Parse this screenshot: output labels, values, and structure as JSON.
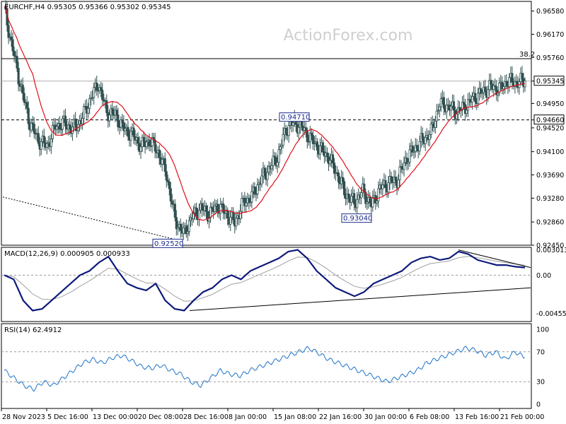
{
  "header": {
    "title": "EURCHF,H4  0.95305 0.95366 0.95302 0.95345"
  },
  "watermark": "ActionForex.com",
  "colors": {
    "candle": "#2f4f4f",
    "ma": "#e0101a",
    "macd": "#0c1a7a",
    "signal": "#a0a0a0",
    "rsi": "#1e74c8",
    "boxed_label": "#1a2a8a",
    "grid": "#9a9a9a",
    "price_tag_bg": "#ffffff"
  },
  "chart_data": [
    {
      "type": "candlestick",
      "title": "EURCHF,H4  0.95305 0.95366 0.95302 0.95345",
      "ylim": [
        0.9245,
        0.9675
      ],
      "y_ticks": [
        "0.96580",
        "0.96170",
        "0.95760",
        "0.95345",
        "0.94950",
        "0.94660",
        "0.94520",
        "0.94100",
        "0.93690",
        "0.93280",
        "0.92860",
        "0.92450"
      ],
      "x_ticks": [
        "28 Nov 2023",
        "5 Dec 16:00",
        "13 Dec 00:00",
        "20 Dec 08:00",
        "28 Dec 16:00",
        "8 Jan 00:00",
        "15 Jan 08:00",
        "22 Jan 16:00",
        "30 Jan 00:00",
        "6 Feb 08:00",
        "13 Feb 16:00",
        "21 Feb 00:00"
      ],
      "current_price": "0.95345",
      "levels": [
        {
          "value": 0.9574,
          "label": "38.2",
          "style": "solid"
        },
        {
          "value": 0.9466,
          "label": "0.94660",
          "style": "dashed"
        }
      ],
      "annotations": [
        {
          "text": "0.94710",
          "x": "15 Jan 2024",
          "y": 0.9471
        },
        {
          "text": "0.93040",
          "x": "30 Jan 2024",
          "y": 0.9304
        },
        {
          "text": "0.92520",
          "x": "28 Dec 2023",
          "y": 0.9252
        }
      ],
      "trendline": {
        "from": {
          "x": "28 Nov 2023",
          "y": 0.933
        },
        "to": {
          "x": "28 Dec 2023",
          "y": 0.9252
        },
        "style": "dotted"
      },
      "close_path": [
        [
          "28 Nov",
          0.966
        ],
        [
          "29 Nov",
          0.959
        ],
        [
          "30 Nov",
          0.952
        ],
        [
          "1 Dec",
          0.946
        ],
        [
          "4 Dec",
          0.943
        ],
        [
          "5 Dec",
          0.942
        ],
        [
          "6 Dec",
          0.9455
        ],
        [
          "7 Dec",
          0.946
        ],
        [
          "8 Dec",
          0.945
        ],
        [
          "11 Dec",
          0.9465
        ],
        [
          "12 Dec",
          0.95
        ],
        [
          "13 Dec",
          0.953
        ],
        [
          "14 Dec",
          0.948
        ],
        [
          "15 Dec",
          0.9475
        ],
        [
          "18 Dec",
          0.945
        ],
        [
          "19 Dec",
          0.944
        ],
        [
          "20 Dec",
          0.942
        ],
        [
          "21 Dec",
          0.943
        ],
        [
          "22 Dec",
          0.941
        ],
        [
          "26 Dec",
          0.937
        ],
        [
          "27 Dec",
          0.929
        ],
        [
          "28 Dec",
          0.9265
        ],
        [
          "29 Dec",
          0.9295
        ],
        [
          "2 Jan",
          0.931
        ],
        [
          "3 Jan",
          0.93
        ],
        [
          "4 Jan",
          0.9315
        ],
        [
          "5 Jan",
          0.93
        ],
        [
          "8 Jan",
          0.9285
        ],
        [
          "9 Jan",
          0.932
        ],
        [
          "10 Jan",
          0.933
        ],
        [
          "11 Jan",
          0.936
        ],
        [
          "12 Jan",
          0.938
        ],
        [
          "15 Jan",
          0.94
        ],
        [
          "16 Jan",
          0.945
        ],
        [
          "17 Jan",
          0.9462
        ],
        [
          "18 Jan",
          0.945
        ],
        [
          "19 Jan",
          0.943
        ],
        [
          "22 Jan",
          0.9415
        ],
        [
          "23 Jan",
          0.94
        ],
        [
          "24 Jan",
          0.937
        ],
        [
          "25 Jan",
          0.9335
        ],
        [
          "26 Jan",
          0.932
        ],
        [
          "29 Jan",
          0.934
        ],
        [
          "30 Jan",
          0.9315
        ],
        [
          "31 Jan",
          0.9345
        ],
        [
          "1 Feb",
          0.9355
        ],
        [
          "2 Feb",
          0.936
        ],
        [
          "5 Feb",
          0.9395
        ],
        [
          "6 Feb",
          0.9415
        ],
        [
          "7 Feb",
          0.943
        ],
        [
          "8 Feb",
          0.9445
        ],
        [
          "9 Feb",
          0.9495
        ],
        [
          "12 Feb",
          0.949
        ],
        [
          "13 Feb",
          0.948
        ],
        [
          "14 Feb",
          0.949
        ],
        [
          "15 Feb",
          0.9505
        ],
        [
          "16 Feb",
          0.9515
        ],
        [
          "19 Feb",
          0.9525
        ],
        [
          "20 Feb",
          0.952
        ],
        [
          "21 Feb",
          0.9535
        ],
        [
          "22 Feb",
          0.9532
        ],
        [
          "23 Feb",
          0.9535
        ]
      ]
    },
    {
      "type": "line",
      "title": "MACD(12,26,9) 0.000905 0.000933",
      "ylim": [
        -0.0055,
        0.0033
      ],
      "y_ticks": [
        "0.003013",
        "0.00",
        "-0.00455"
      ],
      "series_macd": [
        0.0,
        -0.0005,
        -0.003,
        -0.0042,
        -0.004,
        -0.003,
        -0.002,
        -0.001,
        0.0,
        0.0005,
        0.0015,
        0.0022,
        0.0005,
        -0.001,
        -0.0015,
        -0.0018,
        -0.001,
        -0.003,
        -0.004,
        -0.0042,
        -0.003,
        -0.002,
        -0.0015,
        -0.0005,
        0.0,
        -0.0005,
        0.0005,
        0.001,
        0.0015,
        0.002,
        0.0028,
        0.003,
        0.002,
        0.0005,
        -0.0005,
        -0.0015,
        -0.002,
        -0.0025,
        -0.002,
        -0.001,
        -0.0005,
        0.0,
        0.0005,
        0.0015,
        0.002,
        0.0022,
        0.0018,
        0.002,
        0.0028,
        0.0025,
        0.0018,
        0.0015,
        0.0012,
        0.0012,
        0.001,
        0.0009
      ],
      "trendlines": [
        {
          "from": {
            "x": "28 Dec 2023",
            "y": -0.0042
          },
          "to": {
            "x": "23 Feb 2024",
            "y": -0.0015
          }
        },
        {
          "from": {
            "x": "12 Feb 2024",
            "y": 0.003
          },
          "to": {
            "x": "23 Feb 2024",
            "y": 0.0009
          }
        }
      ]
    },
    {
      "type": "line",
      "title": "RSI(14) 62.4912",
      "ylim": [
        0,
        100
      ],
      "y_ticks": [
        "100",
        "70",
        "30",
        "0"
      ],
      "levels": [
        70,
        30
      ],
      "series_rsi": [
        45,
        35,
        25,
        20,
        30,
        25,
        35,
        45,
        55,
        60,
        55,
        62,
        65,
        58,
        50,
        48,
        52,
        45,
        40,
        30,
        25,
        35,
        45,
        40,
        38,
        45,
        50,
        55,
        60,
        65,
        70,
        75,
        68,
        60,
        55,
        50,
        45,
        40,
        35,
        30,
        35,
        40,
        45,
        55,
        60,
        65,
        70,
        75,
        72,
        65,
        70,
        60,
        70,
        62
      ]
    }
  ]
}
